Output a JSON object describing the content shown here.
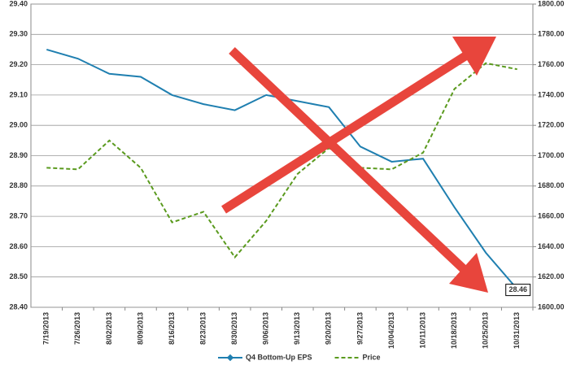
{
  "chart_data": {
    "type": "line",
    "categories": [
      "7/19/2013",
      "7/26/2013",
      "8/02/2013",
      "8/09/2013",
      "8/16/2013",
      "8/23/2013",
      "8/30/2013",
      "9/06/2013",
      "9/13/2013",
      "9/20/2013",
      "9/27/2013",
      "10/04/2013",
      "10/11/2013",
      "10/18/2013",
      "10/25/2013",
      "10/31/2013"
    ],
    "series": [
      {
        "name": "Q4 Bottom-Up EPS",
        "color": "#1f7fb0",
        "style": "solid",
        "axis": "y",
        "values": [
          29.25,
          29.22,
          29.17,
          29.16,
          29.1,
          29.07,
          29.05,
          29.1,
          29.08,
          29.06,
          28.93,
          28.88,
          28.89,
          28.73,
          28.58,
          28.46
        ]
      },
      {
        "name": "Price",
        "color": "#5a9a1e",
        "style": "dashed",
        "axis": "y2",
        "values": [
          1692,
          1691,
          1710,
          1692,
          1656,
          1663,
          1633,
          1657,
          1688,
          1705,
          1692,
          1691,
          1702,
          1744,
          1761,
          1757
        ]
      }
    ],
    "last_value_label": "28.46",
    "ylim": [
      28.4,
      29.4
    ],
    "yticks": [
      {
        "value": 28.4,
        "label": "28.40"
      },
      {
        "value": 28.5,
        "label": "28.50"
      },
      {
        "value": 28.6,
        "label": "28.60"
      },
      {
        "value": 28.7,
        "label": "28.70"
      },
      {
        "value": 28.8,
        "label": "28.80"
      },
      {
        "value": 28.9,
        "label": "28.90"
      },
      {
        "value": 29.0,
        "label": "29.00"
      },
      {
        "value": 29.1,
        "label": "29.10"
      },
      {
        "value": 29.2,
        "label": "29.20"
      },
      {
        "value": 29.3,
        "label": "29.30"
      },
      {
        "value": 29.4,
        "label": "29.40"
      }
    ],
    "y2lim": [
      1600,
      1800
    ],
    "y2ticks": [
      {
        "value": 1600,
        "label": "1600.00"
      },
      {
        "value": 1620,
        "label": "1620.00"
      },
      {
        "value": 1640,
        "label": "1640.00"
      },
      {
        "value": 1660,
        "label": "1660.00"
      },
      {
        "value": 1680,
        "label": "1680.00"
      },
      {
        "value": 1700,
        "label": "1700.00"
      },
      {
        "value": 1720,
        "label": "1720.00"
      },
      {
        "value": 1740,
        "label": "1740.00"
      },
      {
        "value": 1760,
        "label": "1760.00"
      },
      {
        "value": 1780,
        "label": "1780.00"
      },
      {
        "value": 1800,
        "label": "1800.00"
      }
    ],
    "grid": true
  }
}
